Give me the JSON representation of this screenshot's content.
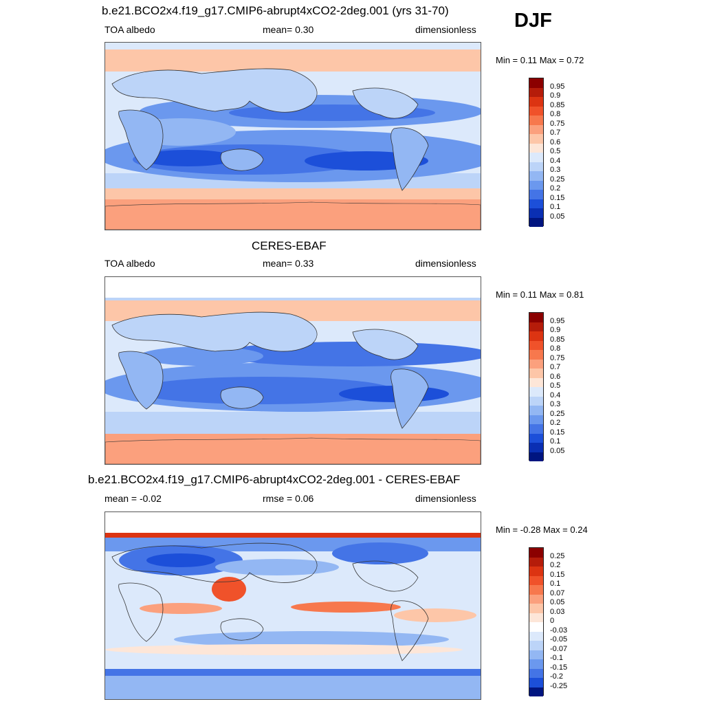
{
  "season": "DJF",
  "panels": [
    {
      "title": "b.e21.BCO2x4.f19_g17.CMIP6-abrupt4xCO2-2deg.001 (yrs 31-70)",
      "left_label": "TOA albedo",
      "mid_label": "mean=   0.30",
      "right_label": "dimensionless",
      "minmax": "Min =   0.11 Max =   0.72",
      "colorbar": {
        "labels": [
          "0.95",
          "0.9",
          "0.85",
          "0.8",
          "0.75",
          "0.7",
          "0.6",
          "0.5",
          "0.4",
          "0.3",
          "0.25",
          "0.2",
          "0.15",
          "0.1",
          "0.05"
        ],
        "colors": [
          "#8b0000",
          "#b51c0a",
          "#dc3412",
          "#f0522a",
          "#f7784d",
          "#fba07d",
          "#fdc6a8",
          "#fde6d8",
          "#dce9fb",
          "#bcd4f8",
          "#93b7f3",
          "#6b98ee",
          "#4474e6",
          "#1c4fd9",
          "#0a2fb3",
          "#001580"
        ]
      }
    },
    {
      "title": "CERES-EBAF",
      "left_label": "TOA albedo",
      "mid_label": "mean=   0.33",
      "right_label": "dimensionless",
      "minmax": "Min =   0.11 Max =   0.81",
      "colorbar": {
        "labels": [
          "0.95",
          "0.9",
          "0.85",
          "0.8",
          "0.75",
          "0.7",
          "0.6",
          "0.5",
          "0.4",
          "0.3",
          "0.25",
          "0.2",
          "0.15",
          "0.1",
          "0.05"
        ],
        "colors": [
          "#8b0000",
          "#b51c0a",
          "#dc3412",
          "#f0522a",
          "#f7784d",
          "#fba07d",
          "#fdc6a8",
          "#fde6d8",
          "#dce9fb",
          "#bcd4f8",
          "#93b7f3",
          "#6b98ee",
          "#4474e6",
          "#1c4fd9",
          "#0a2fb3",
          "#001580"
        ]
      }
    },
    {
      "title": "b.e21.BCO2x4.f19_g17.CMIP6-abrupt4xCO2-2deg.001 - CERES-EBAF",
      "left_label": "mean =  -0.02",
      "mid_label": "rmse =   0.06",
      "right_label": "dimensionless",
      "minmax": "Min =  -0.28 Max =   0.24",
      "colorbar": {
        "labels": [
          "0.25",
          "0.2",
          "0.15",
          "0.1",
          "0.07",
          "0.05",
          "0.03",
          "0",
          "-0.03",
          "-0.05",
          "-0.07",
          "-0.1",
          "-0.15",
          "-0.2",
          "-0.25"
        ],
        "colors": [
          "#8b0000",
          "#b51c0a",
          "#dc3412",
          "#f0522a",
          "#f7784d",
          "#fba07d",
          "#fdc6a8",
          "#fde6d8",
          "#ffffff",
          "#dce9fb",
          "#bcd4f8",
          "#93b7f3",
          "#6b98ee",
          "#4474e6",
          "#1c4fd9",
          "#001580"
        ]
      }
    }
  ]
}
